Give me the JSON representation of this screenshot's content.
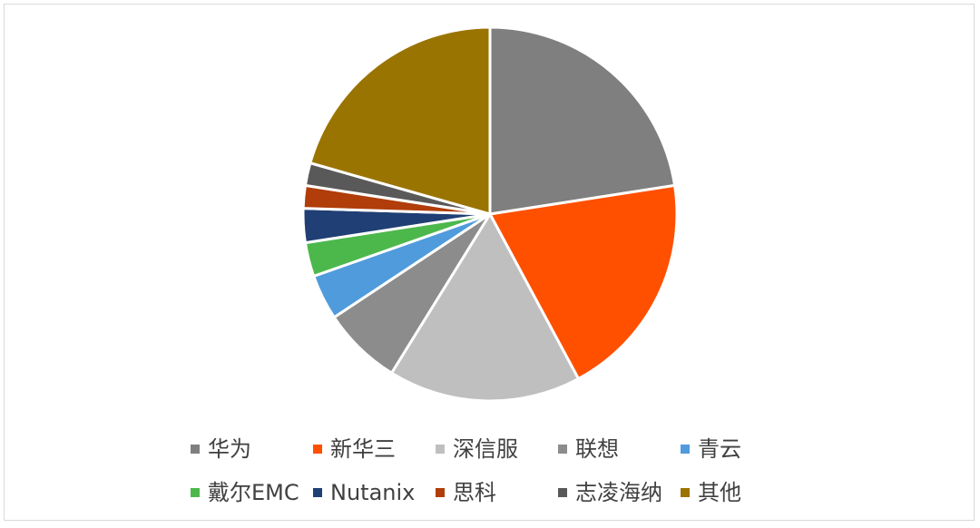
{
  "chart_data": {
    "type": "pie",
    "title": "",
    "legend_position": "bottom",
    "slices": [
      {
        "label": "华为",
        "value": 23,
        "color": "#7f7f7f"
      },
      {
        "label": "新华三",
        "value": 20,
        "color": "#ff5000"
      },
      {
        "label": "深信服",
        "value": 17,
        "color": "#bfbfbf"
      },
      {
        "label": "联想",
        "value": 7,
        "color": "#8c8c8c"
      },
      {
        "label": "青云",
        "value": 4,
        "color": "#4f9bdc"
      },
      {
        "label": "戴尔EMC",
        "value": 3,
        "color": "#4cb84c"
      },
      {
        "label": "Nutanix",
        "value": 3,
        "color": "#203f75"
      },
      {
        "label": "思科",
        "value": 2,
        "color": "#b03d0a"
      },
      {
        "label": "志凌海纳",
        "value": 2,
        "color": "#595959"
      },
      {
        "label": "其他",
        "value": 21,
        "color": "#9a7400"
      }
    ]
  }
}
